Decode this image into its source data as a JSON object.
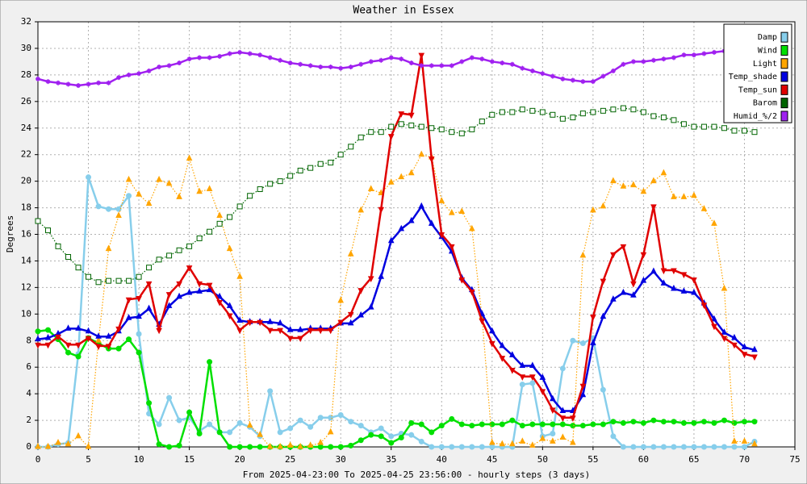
{
  "chart_data": {
    "type": "line",
    "title": "Weather in Essex",
    "x_label": "From 2025-04-23:00 To 2025-04-25 23:56:00 - hourly steps (3 days)",
    "y_label": "Degrees",
    "xlim": [
      0,
      75
    ],
    "xticks": [
      0,
      5,
      10,
      15,
      20,
      25,
      30,
      35,
      40,
      45,
      50,
      55,
      60,
      65,
      70,
      75
    ],
    "ylim": [
      0,
      32
    ],
    "yticks": [
      0,
      2,
      4,
      6,
      8,
      10,
      12,
      14,
      16,
      18,
      20,
      22,
      24,
      26,
      28,
      30,
      32
    ],
    "grid": true,
    "legend": "upper right",
    "x": [
      0,
      1,
      2,
      3,
      4,
      5,
      6,
      7,
      8,
      9,
      10,
      11,
      12,
      13,
      14,
      15,
      16,
      17,
      18,
      19,
      20,
      21,
      22,
      23,
      24,
      25,
      26,
      27,
      28,
      29,
      30,
      31,
      32,
      33,
      34,
      35,
      36,
      37,
      38,
      39,
      40,
      41,
      42,
      43,
      44,
      45,
      46,
      47,
      48,
      49,
      50,
      51,
      52,
      53,
      54,
      55,
      56,
      57,
      58,
      59,
      60,
      61,
      62,
      63,
      64,
      65,
      66,
      67,
      68,
      69,
      70,
      71
    ],
    "series": [
      {
        "name": "Damp",
        "color": "#87ceeb",
        "marker": "circle",
        "dashed": false,
        "values": [
          0,
          0,
          0.2,
          0.3,
          7,
          20.3,
          18.1,
          17.9,
          17.9,
          18.9,
          8.5,
          2.5,
          1.7,
          3.7,
          2,
          2.2,
          1.2,
          1.7,
          1.1,
          1.1,
          1.8,
          1.5,
          0.8,
          4.2,
          1.1,
          1.4,
          2,
          1.5,
          2.2,
          2.2,
          2.4,
          1.9,
          1.6,
          1.1,
          1.4,
          0.8,
          1,
          0.9,
          0.4,
          0,
          0,
          0,
          0,
          0,
          0,
          0,
          0,
          0,
          4.7,
          4.8,
          0.8,
          1,
          5.9,
          8,
          7.8,
          8.2,
          4.3,
          0.8,
          0,
          0,
          0,
          0,
          0,
          0,
          0,
          0,
          0,
          0,
          0,
          0,
          0,
          0.4
        ]
      },
      {
        "name": "Wind",
        "color": "#00e000",
        "marker": "circle",
        "dashed": false,
        "values": [
          8.7,
          8.8,
          8.1,
          7.1,
          6.8,
          8.2,
          7.8,
          7.4,
          7.4,
          8.1,
          7.1,
          3.3,
          0.2,
          0,
          0.1,
          2.6,
          1,
          6.4,
          1.1,
          0,
          0,
          0,
          0,
          0,
          0,
          0,
          0,
          0,
          0,
          0,
          0,
          0.1,
          0.5,
          0.9,
          0.8,
          0.3,
          0.7,
          1.8,
          1.7,
          1.1,
          1.6,
          2.1,
          1.7,
          1.6,
          1.7,
          1.7,
          1.7,
          2,
          1.6,
          1.7,
          1.7,
          1.7,
          1.7,
          1.6,
          1.6,
          1.7,
          1.7,
          1.9,
          1.8,
          1.9,
          1.8,
          2,
          1.9,
          1.9,
          1.8,
          1.8,
          1.9,
          1.8,
          2,
          1.8,
          1.9,
          1.9
        ]
      },
      {
        "name": "Light",
        "color": "#ffa500",
        "marker": "triangle",
        "dashed": true,
        "values": [
          0,
          0,
          0.3,
          0.2,
          0.8,
          0,
          8,
          14.9,
          17.4,
          20.1,
          19,
          18.3,
          20.1,
          19.8,
          18.8,
          21.7,
          19.2,
          19.4,
          17.4,
          14.9,
          12.8,
          1.6,
          0.9,
          0,
          0,
          0.1,
          0,
          0.1,
          0.3,
          1.1,
          11,
          14.5,
          17.8,
          19.4,
          19.1,
          19.9,
          20.3,
          20.6,
          22,
          21.8,
          18.5,
          17.6,
          17.7,
          16.4,
          9.8,
          0.3,
          0.2,
          0.2,
          0.4,
          0.1,
          0.6,
          0.4,
          0.7,
          0.3,
          14.4,
          17.8,
          18.1,
          20,
          19.6,
          19.7,
          19.2,
          20,
          20.6,
          18.8,
          18.8,
          18.9,
          17.9,
          16.8,
          11.9,
          0.4,
          0.4,
          0.2
        ]
      },
      {
        "name": "Temp_shade",
        "color": "#0000e0",
        "marker": "triangle",
        "dashed": false,
        "values": [
          8.1,
          8.2,
          8.5,
          8.9,
          8.9,
          8.7,
          8.3,
          8.3,
          8.7,
          9.7,
          9.8,
          10.4,
          9.2,
          10.6,
          11.3,
          11.6,
          11.7,
          11.8,
          11.3,
          10.6,
          9.5,
          9.4,
          9.4,
          9.4,
          9.3,
          8.8,
          8.8,
          8.9,
          8.9,
          8.9,
          9.3,
          9.3,
          9.9,
          10.5,
          12.8,
          15.5,
          16.4,
          17,
          18.1,
          16.8,
          15.8,
          14.7,
          12.7,
          11.8,
          10,
          8.7,
          7.6,
          6.9,
          6.1,
          6.1,
          5.2,
          3.6,
          2.7,
          2.7,
          3.9,
          7.8,
          9.8,
          11.1,
          11.6,
          11.4,
          12.5,
          13.2,
          12.3,
          11.9,
          11.7,
          11.6,
          10.8,
          9.6,
          8.6,
          8.2,
          7.5,
          7.3
        ]
      },
      {
        "name": "Temp_sun",
        "color": "#e00000",
        "marker": "triangle-down",
        "dashed": false,
        "values": [
          7.7,
          7.7,
          8.3,
          7.7,
          7.7,
          8.2,
          7.6,
          7.6,
          8.9,
          11.1,
          11.2,
          12.3,
          8.8,
          11.5,
          12.3,
          13.5,
          12.3,
          12.2,
          10.9,
          9.9,
          8.8,
          9.4,
          9.4,
          8.8,
          8.8,
          8.2,
          8.2,
          8.8,
          8.8,
          8.8,
          9.4,
          10,
          11.8,
          12.7,
          17.9,
          23.4,
          25.1,
          25,
          29.5,
          21.7,
          16,
          15.1,
          12.6,
          11.7,
          9.5,
          7.8,
          6.7,
          5.8,
          5.3,
          5.3,
          4.2,
          2.8,
          2.2,
          2.2,
          4.6,
          9.8,
          12.5,
          14.5,
          15.1,
          12.3,
          14.5,
          18.1,
          13.3,
          13.3,
          13,
          12.6,
          10.7,
          9.1,
          8.2,
          7.7,
          7,
          6.8
        ]
      },
      {
        "name": "Barom",
        "color": "#006400",
        "marker": "square",
        "dashed": true,
        "values": [
          17,
          16.3,
          15.1,
          14.3,
          13.5,
          12.8,
          12.4,
          12.5,
          12.5,
          12.5,
          12.8,
          13.5,
          14.1,
          14.4,
          14.8,
          15.1,
          15.7,
          16.2,
          16.8,
          17.3,
          18.1,
          18.9,
          19.4,
          19.8,
          20,
          20.4,
          20.8,
          21,
          21.3,
          21.4,
          22,
          22.6,
          23.3,
          23.7,
          23.7,
          24.1,
          24.3,
          24.2,
          24.1,
          24,
          23.9,
          23.7,
          23.6,
          23.9,
          24.5,
          25,
          25.2,
          25.2,
          25.4,
          25.3,
          25.2,
          25,
          24.7,
          24.8,
          25.1,
          25.2,
          25.3,
          25.4,
          25.5,
          25.4,
          25.2,
          24.9,
          24.8,
          24.6,
          24.3,
          24.1,
          24.1,
          24.1,
          24,
          23.8,
          23.8,
          23.7
        ]
      },
      {
        "name": "Humid_%/2",
        "color": "#a020f0",
        "marker": "star",
        "dashed": false,
        "values": [
          27.7,
          27.5,
          27.4,
          27.3,
          27.2,
          27.3,
          27.4,
          27.4,
          27.8,
          28,
          28.1,
          28.3,
          28.6,
          28.7,
          28.9,
          29.2,
          29.3,
          29.3,
          29.4,
          29.6,
          29.7,
          29.6,
          29.5,
          29.3,
          29.1,
          28.9,
          28.8,
          28.7,
          28.6,
          28.6,
          28.5,
          28.6,
          28.8,
          29,
          29.1,
          29.3,
          29.2,
          28.9,
          28.7,
          28.7,
          28.7,
          28.7,
          29,
          29.3,
          29.2,
          29,
          28.9,
          28.8,
          28.5,
          28.3,
          28.1,
          27.9,
          27.7,
          27.6,
          27.5,
          27.5,
          27.9,
          28.3,
          28.8,
          29,
          29,
          29.1,
          29.2,
          29.3,
          29.5,
          29.5,
          29.6,
          29.7,
          29.8,
          29.8,
          29.7,
          29.7
        ]
      }
    ]
  }
}
